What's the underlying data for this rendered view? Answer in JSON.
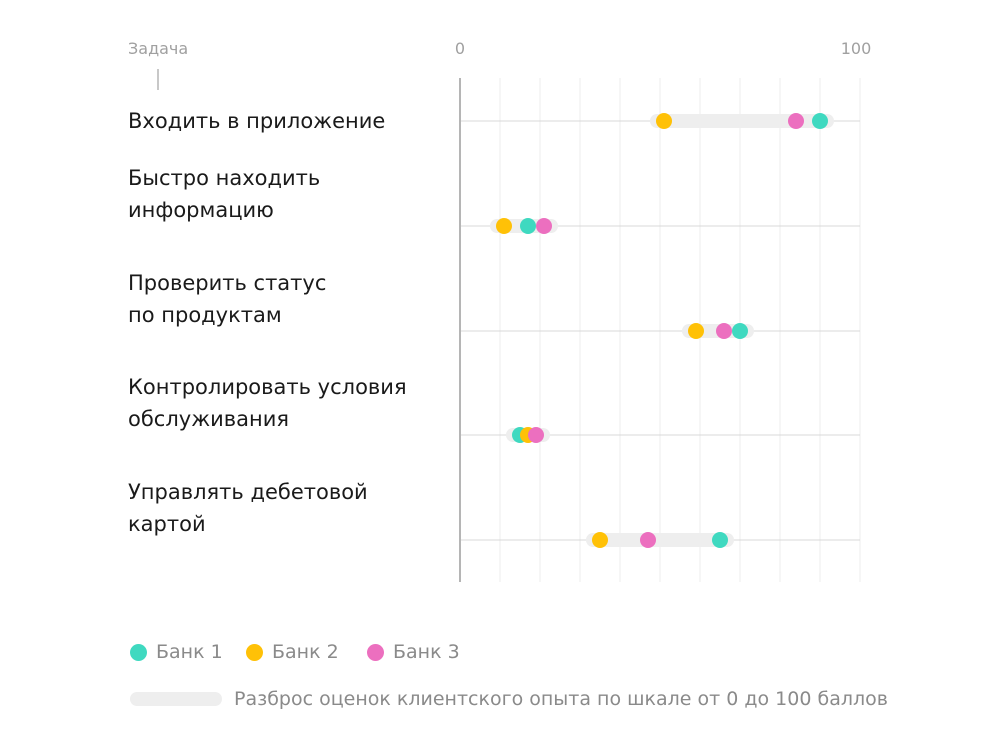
{
  "chart_data": {
    "type": "scatter",
    "header_label": "Задача",
    "x_axis": {
      "min": 0,
      "max": 100,
      "min_label": "0",
      "max_label": "100",
      "grid": true,
      "grid_step": 10
    },
    "categories": [
      "Входить в  приложение",
      "Быстро находить информацию",
      "Проверить статус по продуктам",
      "Контролировать условия обслуживания",
      "Управлять дебетовой картой"
    ],
    "category_lines": [
      [
        "Входить в  приложение"
      ],
      [
        "Быстро находить",
        "информацию"
      ],
      [
        "Проверить статус",
        "по продуктам"
      ],
      [
        "Контролировать условия",
        "обслуживания"
      ],
      [
        "Управлять дебетовой",
        "картой"
      ]
    ],
    "series": [
      {
        "name": "Банк 1",
        "color": "#3fd9c0",
        "values": [
          90,
          17,
          70,
          15,
          65
        ]
      },
      {
        "name": "Банк 2",
        "color": "#ffc107",
        "values": [
          51,
          11,
          59,
          17,
          35
        ]
      },
      {
        "name": "Банк 3",
        "color": "#ec6fbf",
        "values": [
          84,
          21,
          66,
          19,
          47
        ]
      }
    ],
    "range_legend": "Разброс оценок клиентского опыта по шкале от 0 до 100 баллов",
    "legend_position": "bottom-left"
  }
}
